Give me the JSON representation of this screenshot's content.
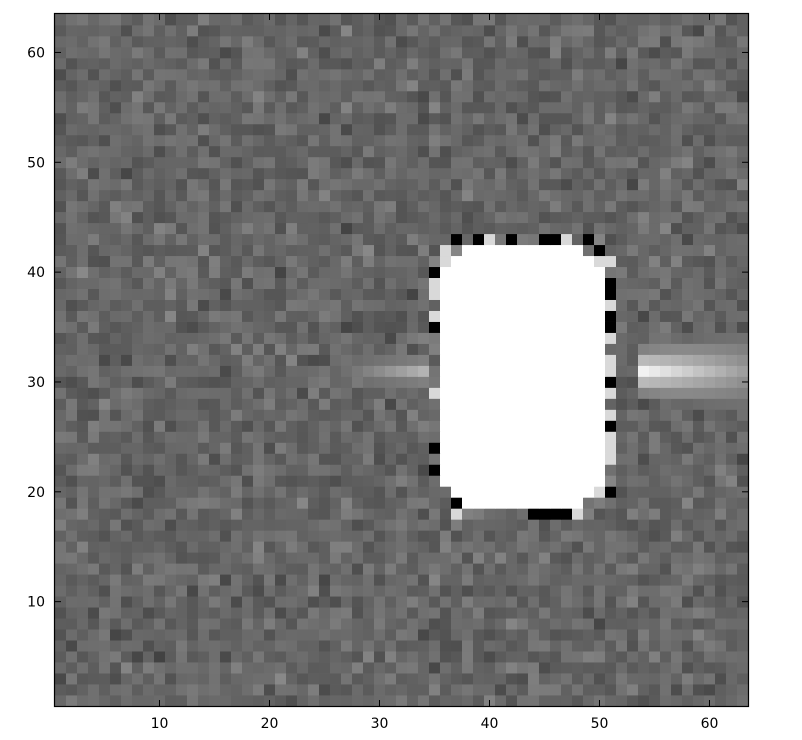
{
  "chart_data": {
    "type": "heatmap",
    "title": "",
    "xlabel": "",
    "ylabel": "",
    "colormap": "gray",
    "grid": false,
    "legend": "none",
    "xlim": [
      0.5,
      63.5
    ],
    "ylim": [
      0.5,
      63.5
    ],
    "xticks": [
      10,
      20,
      30,
      40,
      50,
      60
    ],
    "yticks": [
      10,
      20,
      30,
      40,
      50,
      60
    ],
    "xtick_labels": [
      "10",
      "20",
      "30",
      "40",
      "50",
      "60"
    ],
    "ytick_labels": [
      "10",
      "20",
      "30",
      "40",
      "50",
      "60"
    ],
    "grid_size": 63,
    "background": {
      "mean": 0.4,
      "noise": 0.07
    },
    "saturated_blob": {
      "x_range": [
        36,
        50
      ],
      "y_range": [
        19,
        42
      ],
      "corner_cut": 1.5
    },
    "streaks": [
      {
        "side": "left",
        "row": 31,
        "x_range": [
          26,
          34
        ],
        "peak": 0.7
      },
      {
        "side": "right",
        "row": 31,
        "x_range": [
          54,
          63
        ],
        "peak": 0.95
      }
    ],
    "ring_artifacts": {
      "dark": 0.0,
      "bright": 0.85
    },
    "colors": {
      "frame": "#000000",
      "tick_text": "#000000",
      "background": "#ffffff"
    }
  }
}
